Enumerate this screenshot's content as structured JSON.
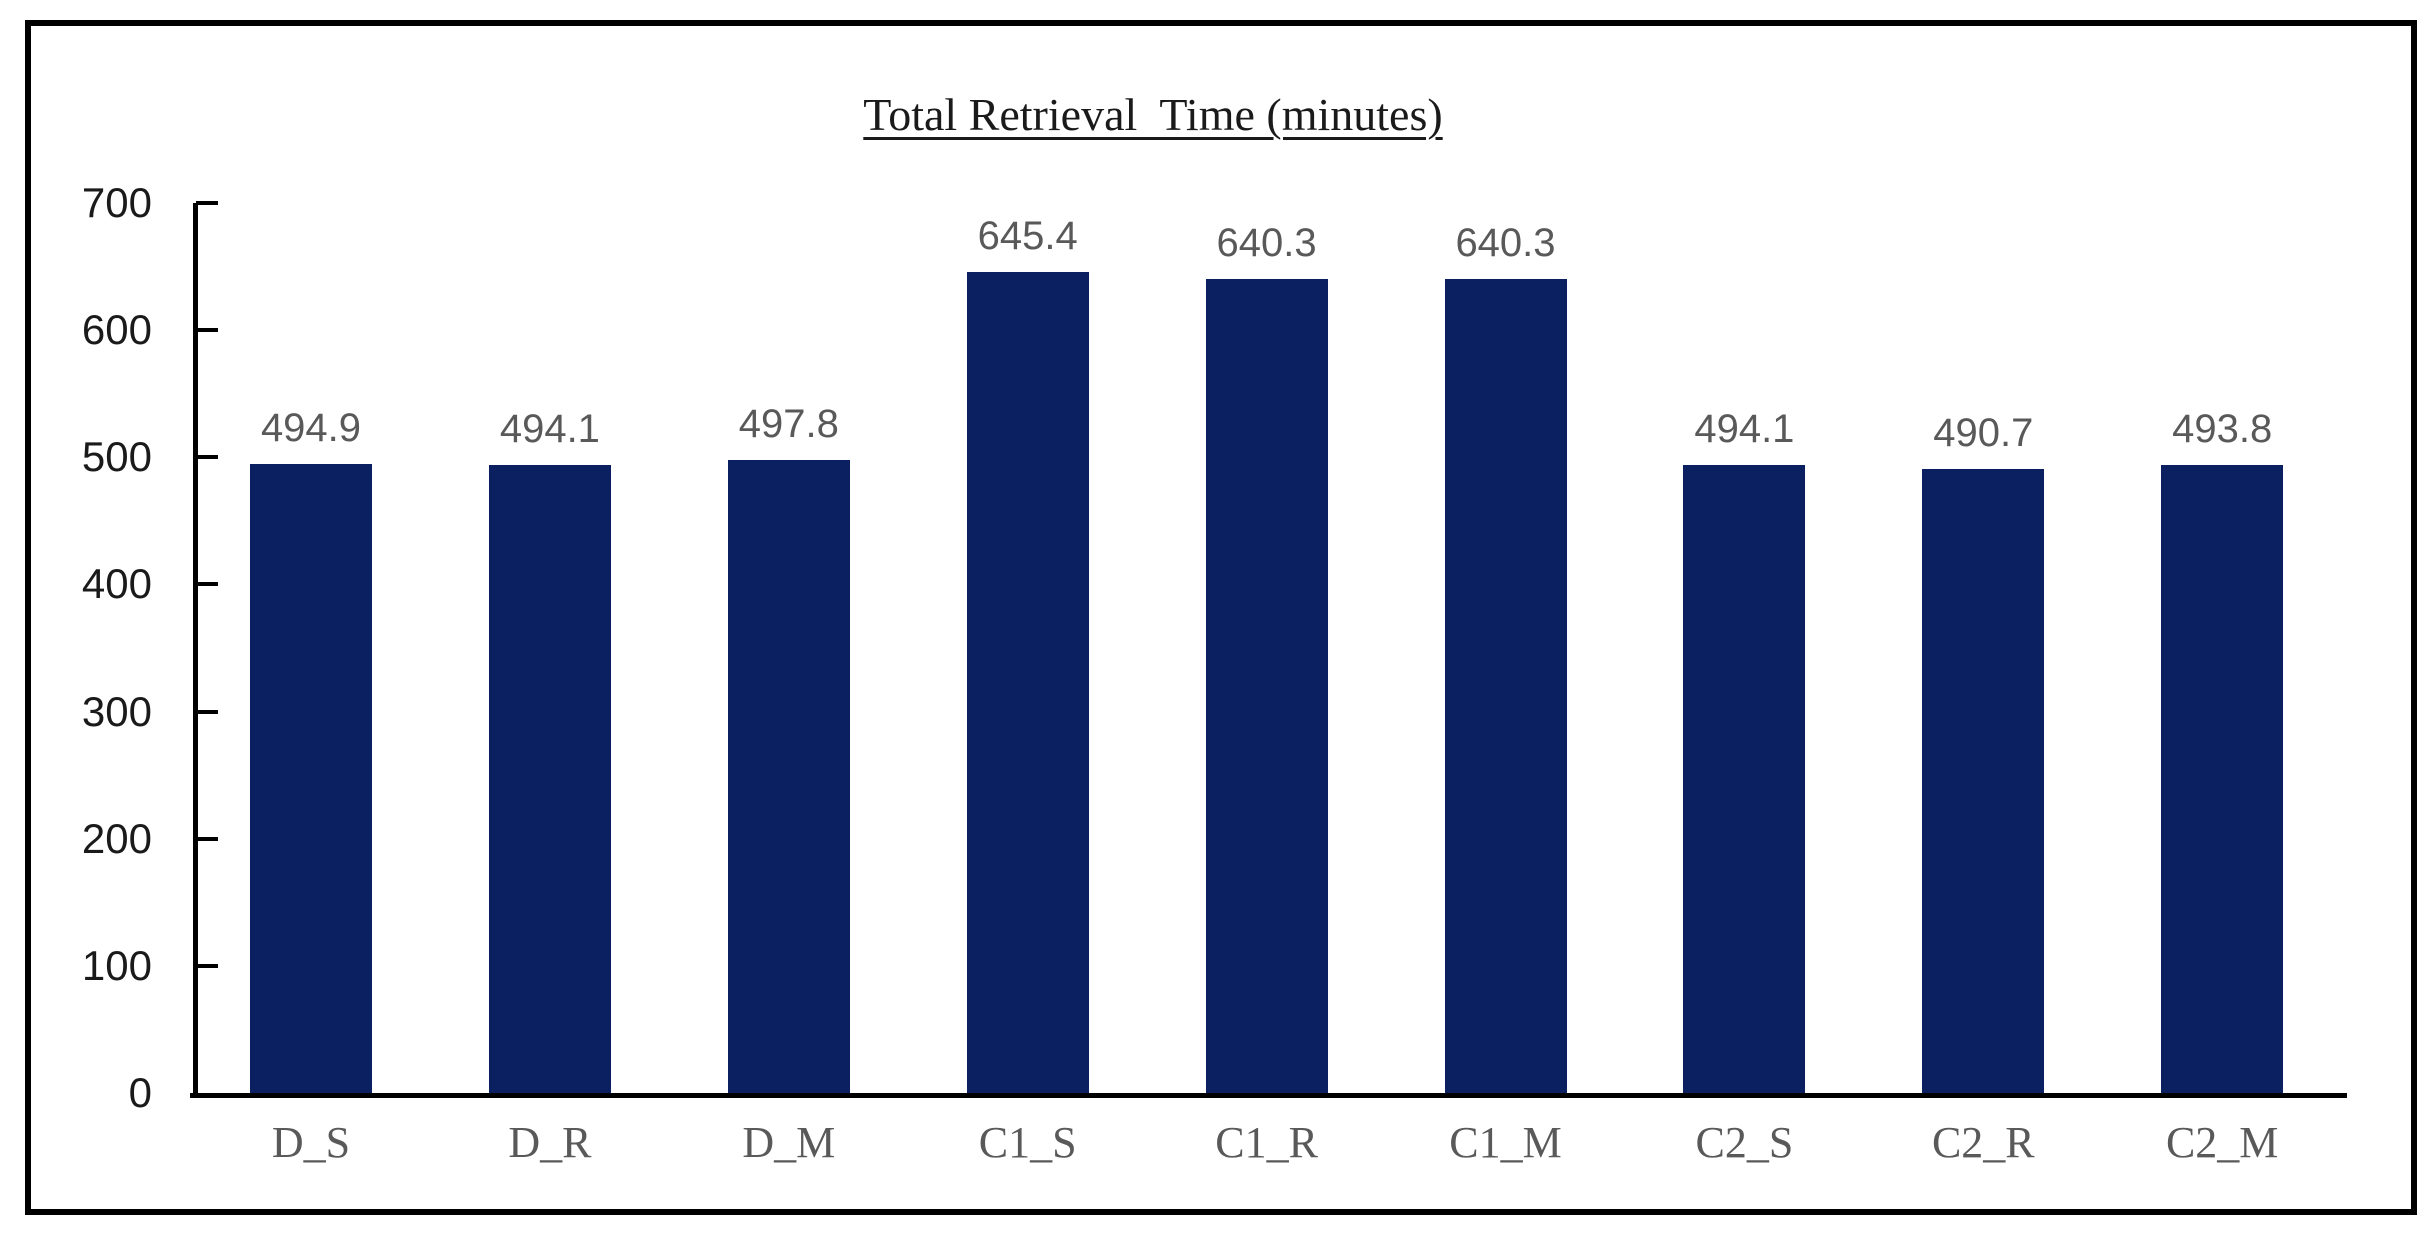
{
  "chart_data": {
    "type": "bar",
    "title": "Total Retrieval  Time (minutes)",
    "categories": [
      "D_S",
      "D_R",
      "D_M",
      "C1_S",
      "C1_R",
      "C1_M",
      "C2_S",
      "C2_R",
      "C2_M"
    ],
    "values": [
      494.9,
      494.1,
      497.8,
      645.4,
      640.3,
      640.3,
      494.1,
      490.7,
      493.8
    ],
    "data_labels": [
      "494.9",
      "494.1",
      "497.8",
      "645.4",
      "640.3",
      "640.3",
      "494.1",
      "490.7",
      "493.8"
    ],
    "y_tick_labels": [
      "0",
      "100",
      "200",
      "300",
      "400",
      "500",
      "600",
      "700"
    ],
    "ylim": [
      0,
      700
    ],
    "ytick_step": 100,
    "xlabel": "",
    "ylabel": "",
    "grid": false,
    "legend": false,
    "bar_color": "#0a2061",
    "axis_color": "#000000",
    "axis_tick_label_color": "#1a1a1a",
    "data_label_color": "#595959",
    "category_label_color": "#595959",
    "frame_border_color": "#000000",
    "background_color": "#ffffff"
  }
}
